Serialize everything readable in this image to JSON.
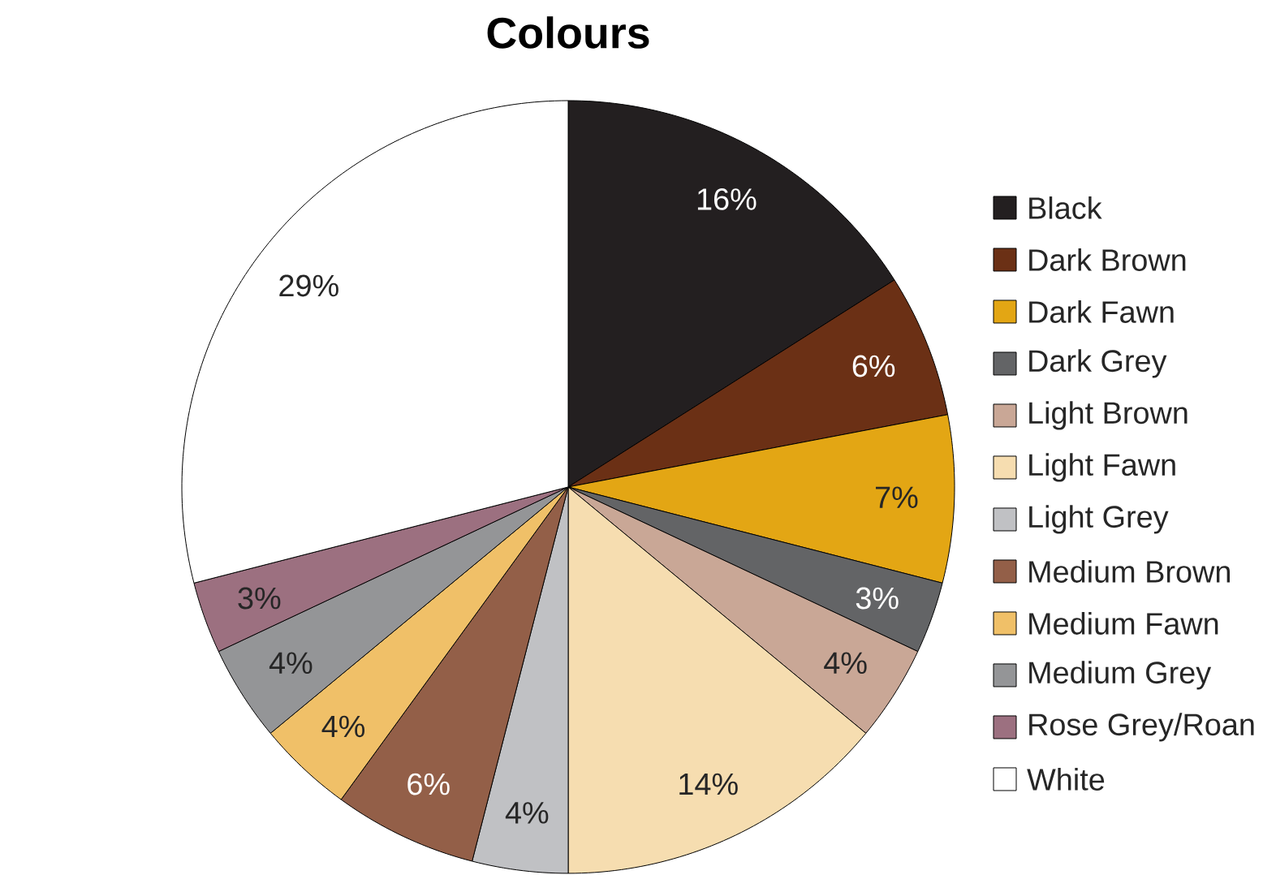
{
  "chart_data": {
    "type": "pie",
    "title": "Colours",
    "categories": [
      "Black",
      "Dark Brown",
      "Dark Fawn",
      "Dark Grey",
      "Light Brown",
      "Light Fawn",
      "Light Grey",
      "Medium Brown",
      "Medium Fawn",
      "Medium Grey",
      "Rose Grey/Roan",
      "White"
    ],
    "values": [
      16,
      6,
      7,
      3,
      4,
      14,
      4,
      6,
      4,
      4,
      3,
      29
    ],
    "value_labels": [
      "16%",
      "6%",
      "7%",
      "3%",
      "4%",
      "14%",
      "4%",
      "6%",
      "4%",
      "4%",
      "3%",
      "29%"
    ],
    "colors": [
      "#231f20",
      "#6b3015",
      "#e3a614",
      "#636466",
      "#c9a796",
      "#f6ddb0",
      "#c0c1c4",
      "#935f48",
      "#f0c068",
      "#949597",
      "#9c7080",
      "#ffffff"
    ],
    "legend": "right"
  }
}
